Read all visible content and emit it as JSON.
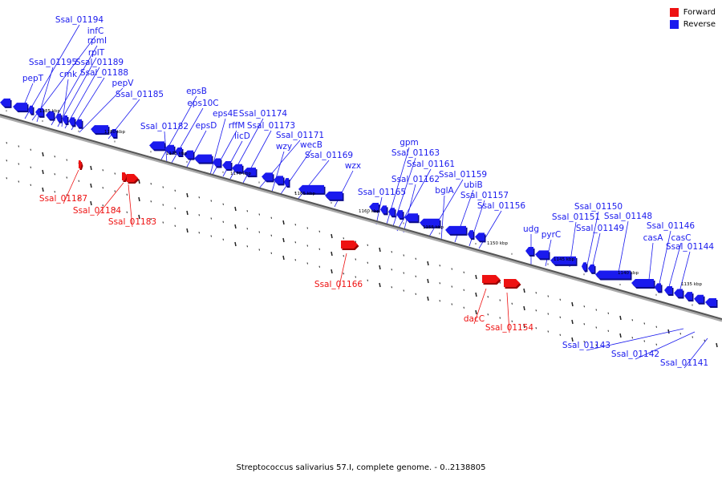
{
  "legend": {
    "forward_label": "Forward",
    "reverse_label": "Reverse",
    "forward_color": "#ee1111",
    "reverse_color": "#1a1aee"
  },
  "caption": "Streptococcus salivarius 57.I, complete genome. - 0..2138805",
  "axis_labels": [
    "1185 kbp",
    "1180 kbp",
    "1175 kbp",
    "1170 kbp",
    "1165 kbp",
    "1160 kbp",
    "1155 kbp",
    "1150 kbp",
    "1145 kbp",
    "1140 kbp",
    "1135 kbp"
  ],
  "reverse_gene_labels": [
    "Ssal_01194",
    "infC",
    "rpmI",
    "rplT",
    "Ssal_01195",
    "Ssal_01189",
    "cmk",
    "Ssal_01188",
    "pepT",
    "pepV",
    "Ssal_01185",
    "epsB",
    "eps10C",
    "Ssal_01182",
    "epsD",
    "eps4E",
    "Ssal_01174",
    "rffM",
    "Ssal_01173",
    "licD",
    "Ssal_01171",
    "wzy",
    "wecB",
    "Ssal_01169",
    "wzx",
    "gpm",
    "Ssal_01163",
    "Ssal_01161",
    "Ssal_01162",
    "Ssal_01165",
    "Ssal_01159",
    "bglA",
    "ubiB",
    "Ssal_01157",
    "Ssal_01156",
    "Ssal_01150",
    "udg",
    "Ssal_01151",
    "pyrC",
    "Ssal_01148",
    "Ssal_01149",
    "Ssal_01146",
    "casA",
    "casC",
    "Ssal_01144",
    "Ssal_01143",
    "Ssal_01142",
    "Ssal_01141"
  ],
  "forward_gene_labels": [
    "Ssal_01187",
    "Ssal_01184",
    "Ssal_01183",
    "Ssal_01166",
    "dacC",
    "Ssal_01154"
  ]
}
